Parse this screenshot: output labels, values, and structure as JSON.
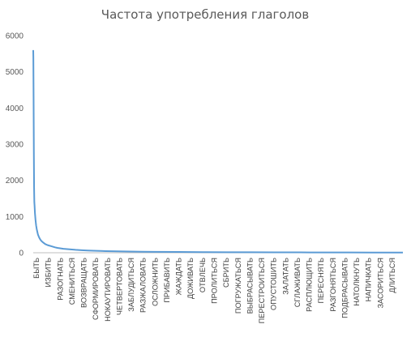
{
  "chart_data": {
    "type": "line",
    "title": "Частота употребления глаголов",
    "xlabel": "",
    "ylabel": "",
    "ylim": [
      0,
      6000
    ],
    "yticks": [
      0,
      1000,
      2000,
      3000,
      4000,
      5000,
      6000
    ],
    "grid": false,
    "legend": "none",
    "color": "#5b9bd5",
    "category_labels": [
      "БЫТЬ",
      "ИЗБИТЬ",
      "РАЗОГНАТЬ",
      "СМЕНИТЬСЯ",
      "ВОЗВРАЩАТЬ",
      "СФОРМИРОВАТЬ",
      "НОКАУТИРОВАТЬ",
      "ЧЕТВЕРТОВАТЬ",
      "ЗАБЛУДИТЬСЯ",
      "РАЗЖАЛОВАТЬ",
      "ОСЛОЖНИТЬ",
      "ПРИБАВИТЬ",
      "ЖАЖДАТЬ",
      "ДОЖИВАТЬ",
      "ОТВЛЕЧЬ",
      "ПРОЛИТЬСЯ",
      "СБРИТЬ",
      "ПОГРУЖАТЬСЯ",
      "ВЫБРАСЫВАТЬ",
      "ПЕРЕСТРОИТЬСЯ",
      "ОПУСТОШИТЬ",
      "ЗАЛАТАТЬ",
      "СГЛАЖИВАТЬ",
      "РАСПЛЮЩИТЬ",
      "ПЕРЕСНЯТЬ",
      "РАЗГОНЯТЬСЯ",
      "ПОДБРАСЫВАТЬ",
      "НАТОЛКНУТЬ",
      "НАПИЧКАТЬ",
      "ЗАСОРИТЬСЯ",
      "ДЛИТЬСЯ"
    ],
    "series": [
      {
        "x_rank": [
          1,
          2,
          3,
          4,
          5,
          6,
          8,
          10,
          12,
          15,
          20,
          25,
          30,
          40,
          50,
          60,
          70,
          80,
          100,
          120,
          150,
          180,
          200,
          250,
          300,
          350,
          400,
          450,
          500,
          600,
          700,
          800,
          900,
          1000,
          1200,
          1400,
          1600,
          1800,
          2000,
          2200,
          2400,
          2600,
          2800,
          3000,
          3047
        ],
        "values": [
          5600,
          5400,
          4800,
          4200,
          3500,
          2800,
          1800,
          1400,
          1300,
          1100,
          900,
          750,
          650,
          500,
          420,
          360,
          320,
          290,
          240,
          210,
          180,
          150,
          135,
          110,
          95,
          80,
          70,
          62,
          55,
          45,
          38,
          33,
          29,
          26,
          21,
          18,
          15,
          13,
          11,
          10,
          9,
          8,
          7,
          6,
          5
        ]
      }
    ]
  }
}
